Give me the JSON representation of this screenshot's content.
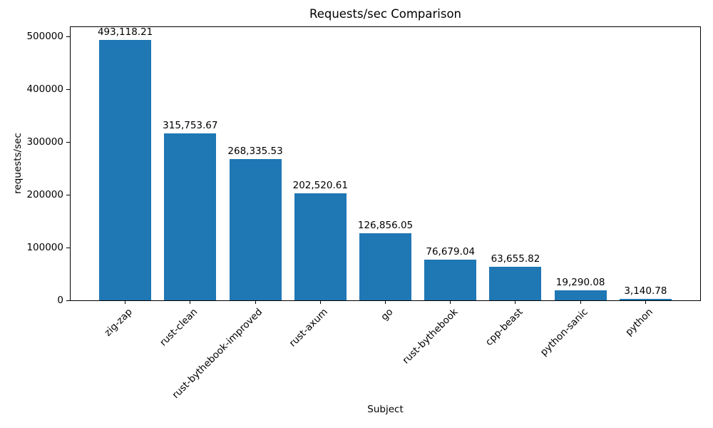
{
  "chart_data": {
    "type": "bar",
    "title": "Requests/sec Comparison",
    "xlabel": "Subject",
    "ylabel": "requests/sec",
    "categories": [
      "zig-zap",
      "rust-clean",
      "rust-bythebook-improved",
      "rust-axum",
      "go",
      "rust-bythebook",
      "cpp-beast",
      "python-sanic",
      "python"
    ],
    "values": [
      493118.21,
      315753.67,
      268335.53,
      202520.61,
      126856.05,
      76679.04,
      63655.82,
      19290.08,
      3140.78
    ],
    "value_labels": [
      "493,118.21",
      "315,753.67",
      "268,335.53",
      "202,520.61",
      "126,856.05",
      "76,679.04",
      "63,655.82",
      "19,290.08",
      "3,140.78"
    ],
    "yticks": [
      0,
      100000,
      200000,
      300000,
      400000,
      500000
    ],
    "ytick_labels": [
      "0",
      "100000",
      "200000",
      "300000",
      "400000",
      "500000"
    ],
    "ylim": [
      0,
      517774
    ],
    "xtick_rotation": 45,
    "grid": false,
    "legend": "none",
    "bar_color": "#1f77b4",
    "background_color": "#ffffff",
    "text_color": "#000000"
  }
}
